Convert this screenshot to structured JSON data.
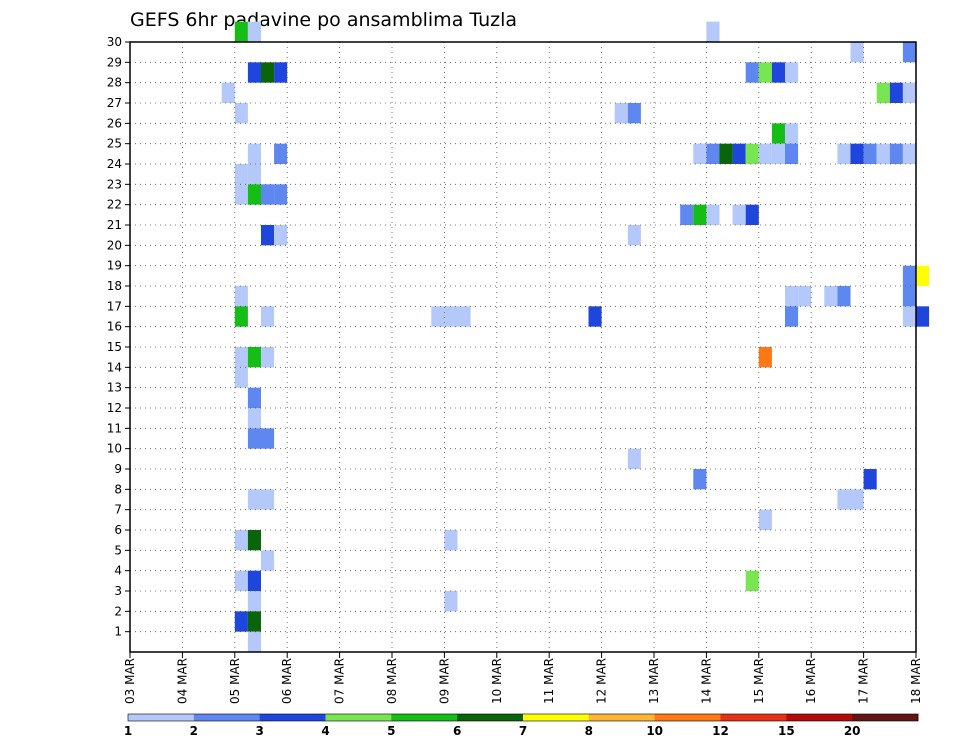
{
  "chart_data": {
    "type": "heatmap",
    "title": "GEFS 6hr padavine po ansamblima Tuzla",
    "x_labels": [
      "03 MAR",
      "04 MAR",
      "05 MAR",
      "06 MAR",
      "07 MAR",
      "08 MAR",
      "09 MAR",
      "10 MAR",
      "11 MAR",
      "12 MAR",
      "13 MAR",
      "14 MAR",
      "15 MAR",
      "16 MAR",
      "17 MAR",
      "18 MAR"
    ],
    "y_labels": [
      "1",
      "2",
      "3",
      "4",
      "5",
      "6",
      "7",
      "8",
      "9",
      "10",
      "11",
      "12",
      "13",
      "14",
      "15",
      "16",
      "17",
      "18",
      "19",
      "20",
      "21",
      "22",
      "23",
      "24",
      "25",
      "26",
      "27",
      "28",
      "29",
      "30"
    ],
    "x_unit": "days",
    "x_step": 0.25,
    "xlim": [
      0,
      15
    ],
    "ylim": [
      0,
      30
    ],
    "grid": true,
    "colorbar": {
      "placement": "bottom",
      "labels": [
        "1",
        "2",
        "3",
        "4",
        "5",
        "6",
        "7",
        "8",
        "10",
        "12",
        "15",
        "20"
      ],
      "colors": [
        "#b4c8fa",
        "#5f87f0",
        "#1e46dc",
        "#78e650",
        "#14be14",
        "#0a640a",
        "#ffff00",
        "#ffb432",
        "#ff7814",
        "#e63214",
        "#b40a0a",
        "#641414"
      ]
    },
    "cells": [
      [
        2.0,
        30,
        "#14be14"
      ],
      [
        2.25,
        30,
        "#b4c8fa"
      ],
      [
        11.0,
        30,
        "#b4c8fa"
      ],
      [
        13.75,
        29,
        "#b4c8fa"
      ],
      [
        14.75,
        29,
        "#5f87f0"
      ],
      [
        2.25,
        28,
        "#1e46dc"
      ],
      [
        2.5,
        28,
        "#0a640a"
      ],
      [
        2.75,
        28,
        "#1e46dc"
      ],
      [
        11.75,
        28,
        "#5f87f0"
      ],
      [
        12.0,
        28,
        "#78e650"
      ],
      [
        12.25,
        28,
        "#1e46dc"
      ],
      [
        12.5,
        28,
        "#b4c8fa"
      ],
      [
        1.75,
        27,
        "#b4c8fa"
      ],
      [
        14.25,
        27,
        "#78e650"
      ],
      [
        14.5,
        27,
        "#1e46dc"
      ],
      [
        14.75,
        27,
        "#b4c8fa"
      ],
      [
        2.0,
        26,
        "#b4c8fa"
      ],
      [
        9.25,
        26,
        "#b4c8fa"
      ],
      [
        9.5,
        26,
        "#5f87f0"
      ],
      [
        12.25,
        25,
        "#14be14"
      ],
      [
        12.5,
        25,
        "#b4c8fa"
      ],
      [
        2.25,
        24,
        "#b4c8fa"
      ],
      [
        2.75,
        24,
        "#5f87f0"
      ],
      [
        10.75,
        24,
        "#b4c8fa"
      ],
      [
        11.0,
        24,
        "#5f87f0"
      ],
      [
        11.25,
        24,
        "#0a640a"
      ],
      [
        11.5,
        24,
        "#1e46dc"
      ],
      [
        11.75,
        24,
        "#78e650"
      ],
      [
        12.0,
        24,
        "#b4c8fa"
      ],
      [
        12.25,
        24,
        "#b4c8fa"
      ],
      [
        12.5,
        24,
        "#5f87f0"
      ],
      [
        13.5,
        24,
        "#b4c8fa"
      ],
      [
        13.75,
        24,
        "#1e46dc"
      ],
      [
        14.0,
        24,
        "#5f87f0"
      ],
      [
        14.25,
        24,
        "#b4c8fa"
      ],
      [
        14.5,
        24,
        "#5f87f0"
      ],
      [
        14.75,
        24,
        "#b4c8fa"
      ],
      [
        2.0,
        23,
        "#b4c8fa"
      ],
      [
        2.25,
        23,
        "#b4c8fa"
      ],
      [
        2.0,
        22,
        "#b4c8fa"
      ],
      [
        2.25,
        22,
        "#14be14"
      ],
      [
        2.5,
        22,
        "#5f87f0"
      ],
      [
        2.75,
        22,
        "#5f87f0"
      ],
      [
        10.5,
        21,
        "#5f87f0"
      ],
      [
        10.75,
        21,
        "#14be14"
      ],
      [
        11.0,
        21,
        "#b4c8fa"
      ],
      [
        11.5,
        21,
        "#b4c8fa"
      ],
      [
        11.75,
        21,
        "#1e46dc"
      ],
      [
        2.5,
        20,
        "#1e46dc"
      ],
      [
        2.75,
        20,
        "#b4c8fa"
      ],
      [
        9.5,
        20,
        "#b4c8fa"
      ],
      [
        14.75,
        18,
        "#5f87f0"
      ],
      [
        15.0,
        18,
        "#ffff00"
      ],
      [
        2.0,
        17,
        "#b4c8fa"
      ],
      [
        12.5,
        17,
        "#b4c8fa"
      ],
      [
        12.75,
        17,
        "#b4c8fa"
      ],
      [
        13.25,
        17,
        "#b4c8fa"
      ],
      [
        13.5,
        17,
        "#5f87f0"
      ],
      [
        14.75,
        17,
        "#5f87f0"
      ],
      [
        2.0,
        16,
        "#14be14"
      ],
      [
        2.5,
        16,
        "#b4c8fa"
      ],
      [
        5.75,
        16,
        "#b4c8fa"
      ],
      [
        6.0,
        16,
        "#b4c8fa"
      ],
      [
        6.25,
        16,
        "#b4c8fa"
      ],
      [
        8.75,
        16,
        "#1e46dc"
      ],
      [
        12.5,
        16,
        "#5f87f0"
      ],
      [
        14.75,
        16,
        "#b4c8fa"
      ],
      [
        15.0,
        16,
        "#1e46dc"
      ],
      [
        2.0,
        14,
        "#b4c8fa"
      ],
      [
        2.25,
        14,
        "#14be14"
      ],
      [
        2.5,
        14,
        "#b4c8fa"
      ],
      [
        12.0,
        14,
        "#ff7814"
      ],
      [
        2.0,
        13,
        "#b4c8fa"
      ],
      [
        2.25,
        12,
        "#5f87f0"
      ],
      [
        2.25,
        11,
        "#b4c8fa"
      ],
      [
        2.25,
        10,
        "#5f87f0"
      ],
      [
        2.5,
        10,
        "#5f87f0"
      ],
      [
        9.5,
        9,
        "#b4c8fa"
      ],
      [
        10.75,
        8,
        "#5f87f0"
      ],
      [
        14.0,
        8,
        "#1e46dc"
      ],
      [
        2.25,
        7,
        "#b4c8fa"
      ],
      [
        2.5,
        7,
        "#b4c8fa"
      ],
      [
        13.5,
        7,
        "#b4c8fa"
      ],
      [
        13.75,
        7,
        "#b4c8fa"
      ],
      [
        12.0,
        6,
        "#b4c8fa"
      ],
      [
        2.0,
        5,
        "#b4c8fa"
      ],
      [
        2.25,
        5,
        "#0a640a"
      ],
      [
        6.0,
        5,
        "#b4c8fa"
      ],
      [
        2.5,
        4,
        "#b4c8fa"
      ],
      [
        2.0,
        3,
        "#b4c8fa"
      ],
      [
        2.25,
        3,
        "#1e46dc"
      ],
      [
        11.75,
        3,
        "#78e650"
      ],
      [
        2.25,
        2,
        "#b4c8fa"
      ],
      [
        6.0,
        2,
        "#b4c8fa"
      ],
      [
        2.0,
        1,
        "#1e46dc"
      ],
      [
        2.25,
        1,
        "#0a640a"
      ],
      [
        2.25,
        0,
        "#b4c8fa"
      ]
    ]
  }
}
